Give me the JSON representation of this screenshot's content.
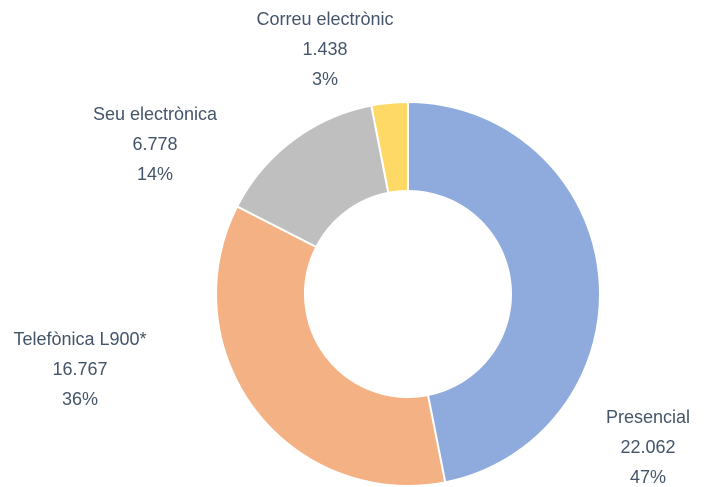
{
  "chart_data": {
    "type": "donut",
    "categories": [
      "Presencial",
      "Telefònica L900*",
      "Seu electrònica",
      "Correu electrònic"
    ],
    "values": [
      22062,
      16767,
      6778,
      1438
    ],
    "value_labels": [
      "22.062",
      "16.767",
      "6.778",
      "1.438"
    ],
    "percent_labels": [
      "47%",
      "36%",
      "14%",
      "3%"
    ],
    "colors": [
      "#8faadc",
      "#f4b183",
      "#bfbfbf",
      "#ffd966"
    ]
  }
}
